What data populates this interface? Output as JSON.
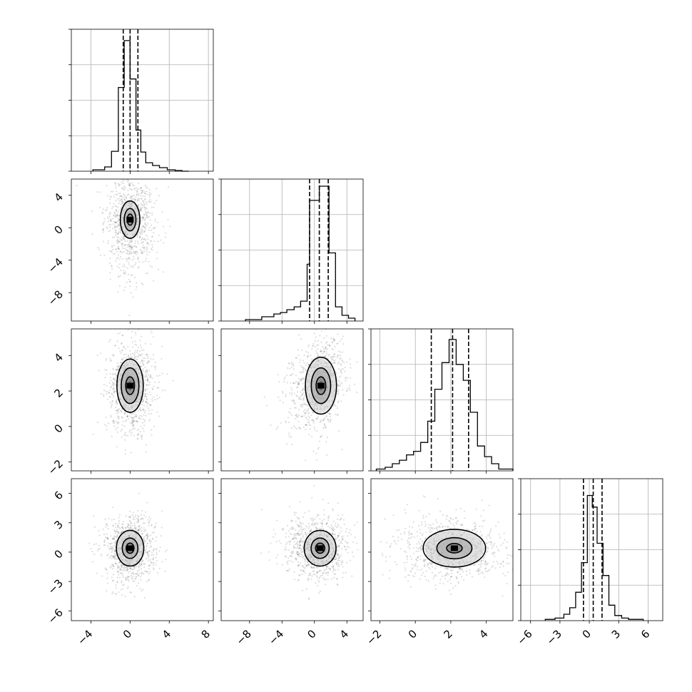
{
  "chart_data": {
    "type": "corner",
    "grid": true,
    "quantile_lines": "dashed",
    "parameters": [
      {
        "range": [
          -6.0,
          8.5
        ],
        "ticks": [
          -4,
          0,
          4,
          8
        ],
        "tick_labels": [
          "−4",
          "0",
          "4",
          "8"
        ],
        "quantiles": [
          -0.7,
          0.0,
          0.8
        ],
        "histogram": {
          "bin_edges": [
            -3.8,
            -2.6,
            -1.9,
            -1.2,
            -0.6,
            0.0,
            0.6,
            1.1,
            1.6,
            2.3,
            3.0,
            3.8,
            4.6,
            5.3,
            6.0
          ],
          "counts": [
            2,
            6,
            28,
            118,
            184,
            130,
            58,
            27,
            12,
            8,
            5,
            2,
            1,
            0
          ]
        },
        "hist_ymax": 200
      },
      {
        "range": [
          -11.5,
          6.0
        ],
        "ticks": [
          -8,
          -4,
          0,
          4
        ],
        "tick_labels": [
          "−8",
          "−4",
          "0",
          "4"
        ],
        "quantiles": [
          -0.6,
          0.6,
          1.7
        ],
        "histogram": {
          "bin_edges": [
            -8.5,
            -6.5,
            -5.0,
            -4.2,
            -3.4,
            -2.5,
            -1.7,
            -0.9,
            -0.6,
            0.6,
            1.8,
            2.6,
            3.4,
            4.2,
            5.0
          ],
          "counts": [
            1,
            3,
            5,
            6,
            8,
            10,
            14,
            40,
            85,
            95,
            48,
            10,
            4,
            2
          ]
        },
        "hist_ymax": 100
      },
      {
        "range": [
          -2.5,
          5.5
        ],
        "ticks": [
          -2,
          0,
          2,
          4
        ],
        "tick_labels": [
          "−2",
          "0",
          "2",
          "4"
        ],
        "quantiles": [
          0.9,
          2.1,
          3.0
        ],
        "histogram": {
          "bin_edges": [
            -2.2,
            -1.7,
            -1.3,
            -0.9,
            -0.5,
            -0.1,
            0.3,
            0.7,
            1.1,
            1.5,
            1.9,
            2.3,
            2.7,
            3.1,
            3.5,
            3.9,
            4.3,
            4.7,
            5.1,
            5.5
          ],
          "counts": [
            1,
            2,
            4,
            6,
            9,
            11,
            16,
            28,
            46,
            61,
            74,
            60,
            51,
            33,
            14,
            8,
            4,
            1,
            1
          ]
        },
        "hist_ymax": 80
      },
      {
        "range": [
          -7.0,
          7.5
        ],
        "ticks": [
          -6,
          -3,
          0,
          3,
          6
        ],
        "tick_labels": [
          "−6",
          "−3",
          "0",
          "3",
          "6"
        ],
        "quantiles": [
          -0.6,
          0.4,
          1.3
        ],
        "histogram": {
          "bin_edges": [
            -4.5,
            -3.5,
            -2.6,
            -2.0,
            -1.4,
            -0.8,
            -0.2,
            0.3,
            0.8,
            1.4,
            2.0,
            2.6,
            3.3,
            4.0,
            5.5
          ],
          "counts": [
            1,
            2,
            5,
            10,
            22,
            45,
            97,
            88,
            60,
            35,
            12,
            4,
            2,
            1
          ]
        },
        "hist_ymax": 110
      }
    ],
    "hist_y_ticks": [
      0.25,
      0.5,
      0.75
    ],
    "pairs": [
      {
        "row": 1,
        "col": 0,
        "center": [
          0.0,
          1.0
        ],
        "sigma": [
          1.0,
          2.3
        ],
        "rho": 0.0,
        "skew_tail": [
          0.4,
          -3.5
        ],
        "contour_scales": [
          0.3,
          0.6,
          1.0
        ]
      },
      {
        "row": 2,
        "col": 0,
        "center": [
          0.0,
          2.3
        ],
        "sigma": [
          0.9,
          1.0
        ],
        "rho": 0.0,
        "skew_tail": [
          0.6,
          -0.3
        ],
        "contour_scales": [
          0.5,
          1.0,
          1.5
        ]
      },
      {
        "row": 2,
        "col": 1,
        "center": [
          0.8,
          2.3
        ],
        "sigma": [
          1.2,
          1.0
        ],
        "rho": 0.3,
        "skew_tail": [
          -3.0,
          -0.1
        ],
        "contour_scales": [
          0.5,
          1.0,
          1.6
        ]
      },
      {
        "row": 3,
        "col": 0,
        "center": [
          0.0,
          0.4
        ],
        "sigma": [
          1.0,
          1.3
        ],
        "rho": 0.0,
        "skew_tail": [
          0.5,
          -0.4
        ],
        "contour_scales": [
          0.4,
          0.8,
          1.4
        ]
      },
      {
        "row": 3,
        "col": 1,
        "center": [
          0.7,
          0.4
        ],
        "sigma": [
          1.4,
          1.3
        ],
        "rho": 0.0,
        "skew_tail": [
          -2.5,
          0.0
        ],
        "contour_scales": [
          0.4,
          0.8,
          1.4
        ]
      },
      {
        "row": 3,
        "col": 2,
        "center": [
          2.2,
          0.4
        ],
        "sigma": [
          1.1,
          1.2
        ],
        "rho": 0.0,
        "skew_tail": [
          -1.5,
          -0.5
        ],
        "contour_scales": [
          0.4,
          0.9,
          1.6
        ]
      }
    ]
  }
}
